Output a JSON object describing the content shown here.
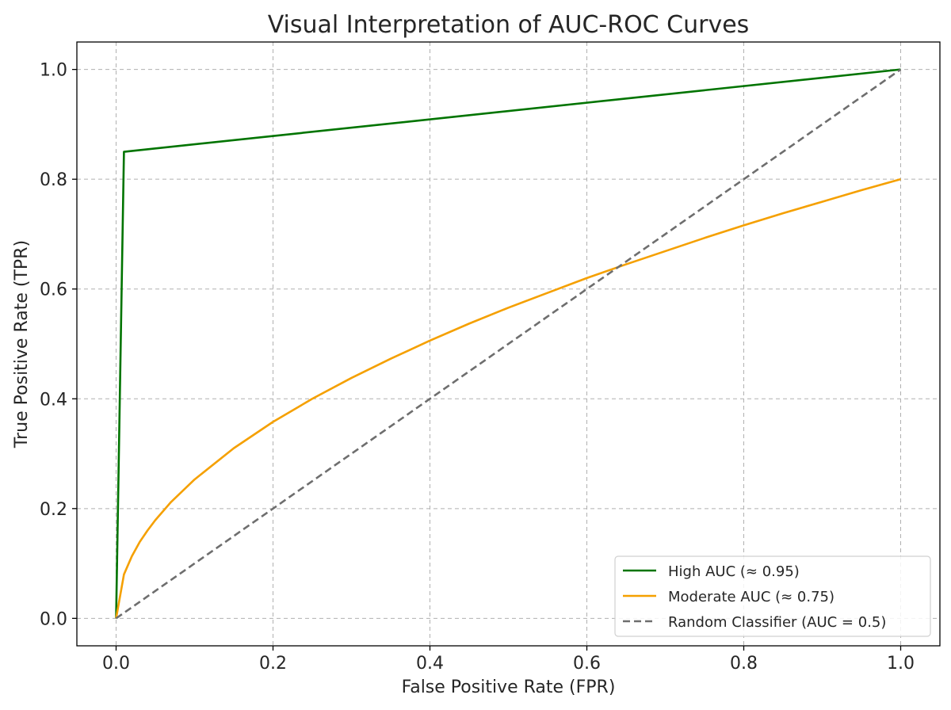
{
  "chart_data": {
    "type": "line",
    "title": "Visual Interpretation of AUC-ROC Curves",
    "xlabel": "False Positive Rate (FPR)",
    "ylabel": "True Positive Rate (TPR)",
    "xlim": [
      -0.05,
      1.05
    ],
    "ylim": [
      -0.05,
      1.05
    ],
    "xticks": [
      0.0,
      0.2,
      0.4,
      0.6,
      0.8,
      1.0
    ],
    "yticks": [
      0.0,
      0.2,
      0.4,
      0.6,
      0.8,
      1.0
    ],
    "xtick_labels": [
      "0.0",
      "0.2",
      "0.4",
      "0.6",
      "0.8",
      "1.0"
    ],
    "ytick_labels": [
      "0.0",
      "0.2",
      "0.4",
      "0.6",
      "0.8",
      "1.0"
    ],
    "grid": true,
    "legend_position": "bottom-right",
    "series": [
      {
        "name": "High AUC (≈ 0.95)",
        "color": "#007400",
        "dash": "solid",
        "points": [
          [
            0.0,
            0.0
          ],
          [
            0.01,
            0.85
          ],
          [
            1.0,
            1.0
          ]
        ]
      },
      {
        "name": "Moderate AUC (≈ 0.75)",
        "color": "#f5a000",
        "dash": "solid",
        "points": [
          [
            0.0,
            0.0
          ],
          [
            0.01,
            0.08
          ],
          [
            0.02,
            0.113
          ],
          [
            0.03,
            0.139
          ],
          [
            0.04,
            0.16
          ],
          [
            0.05,
            0.179
          ],
          [
            0.07,
            0.212
          ],
          [
            0.1,
            0.253
          ],
          [
            0.15,
            0.31
          ],
          [
            0.2,
            0.358
          ],
          [
            0.25,
            0.4
          ],
          [
            0.3,
            0.438
          ],
          [
            0.35,
            0.473
          ],
          [
            0.4,
            0.506
          ],
          [
            0.45,
            0.537
          ],
          [
            0.5,
            0.566
          ],
          [
            0.55,
            0.593
          ],
          [
            0.6,
            0.62
          ],
          [
            0.65,
            0.645
          ],
          [
            0.7,
            0.669
          ],
          [
            0.75,
            0.693
          ],
          [
            0.8,
            0.716
          ],
          [
            0.85,
            0.738
          ],
          [
            0.9,
            0.759
          ],
          [
            0.95,
            0.78
          ],
          [
            1.0,
            0.8
          ]
        ]
      },
      {
        "name": "Random Classifier (AUC = 0.5)",
        "color": "#6e6e6e",
        "dash": "dashed",
        "points": [
          [
            0.0,
            0.0
          ],
          [
            1.0,
            1.0
          ]
        ]
      }
    ]
  }
}
